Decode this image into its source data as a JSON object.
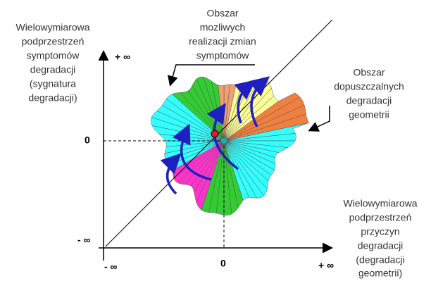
{
  "labels": {
    "symptom_space": [
      "Wielowymiarowa",
      "podprzestrzeń",
      "symptomów",
      "degradacji",
      "(sygnatura",
      "degradacji)"
    ],
    "possible_region": [
      "Obszar",
      "mozliwych",
      "realizacji zmian",
      "symptomów"
    ],
    "admissible_region": [
      "Obszar",
      "dopuszczalnych",
      "degradacji",
      "geometrii"
    ],
    "cause_space": [
      "Wielowymiarowa",
      "podprzestrzeń",
      "przyczyn",
      "degradacji",
      "(degradacji",
      "geometrii)"
    ]
  },
  "axes": {
    "y_plus": "+ ∞",
    "y_zero": "0",
    "y_minus": "- ∞",
    "x_minus": "- ∞",
    "x_zero": "0",
    "x_plus": "+ ∞"
  }
}
